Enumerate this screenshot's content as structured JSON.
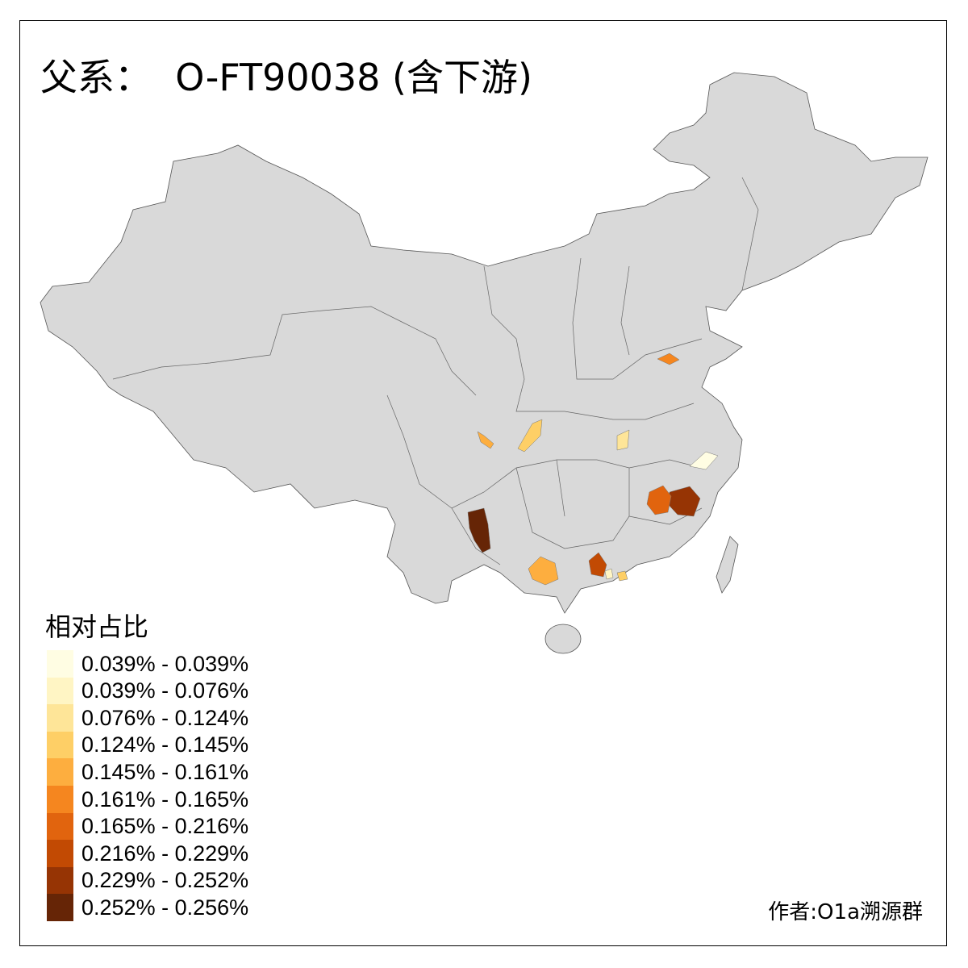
{
  "title": "父系：  O-FT90038 (含下游)",
  "legend": {
    "title": "相对占比",
    "items": [
      {
        "label": "0.039% - 0.039%",
        "color": "#FFFDE3"
      },
      {
        "label": "0.039% - 0.076%",
        "color": "#FFF5C4"
      },
      {
        "label": "0.076% - 0.124%",
        "color": "#FEE598"
      },
      {
        "label": "0.124% - 0.145%",
        "color": "#FECF66"
      },
      {
        "label": "0.145% - 0.161%",
        "color": "#FDAE3F"
      },
      {
        "label": "0.161% - 0.165%",
        "color": "#F5861F"
      },
      {
        "label": "0.165% - 0.216%",
        "color": "#E1640E"
      },
      {
        "label": "0.216% - 0.229%",
        "color": "#C24A03"
      },
      {
        "label": "0.229% - 0.252%",
        "color": "#963404"
      },
      {
        "label": "0.252% - 0.256%",
        "color": "#662506"
      }
    ]
  },
  "base_color": "#D9D9D9",
  "credit": "作者:O1a溯源群"
}
